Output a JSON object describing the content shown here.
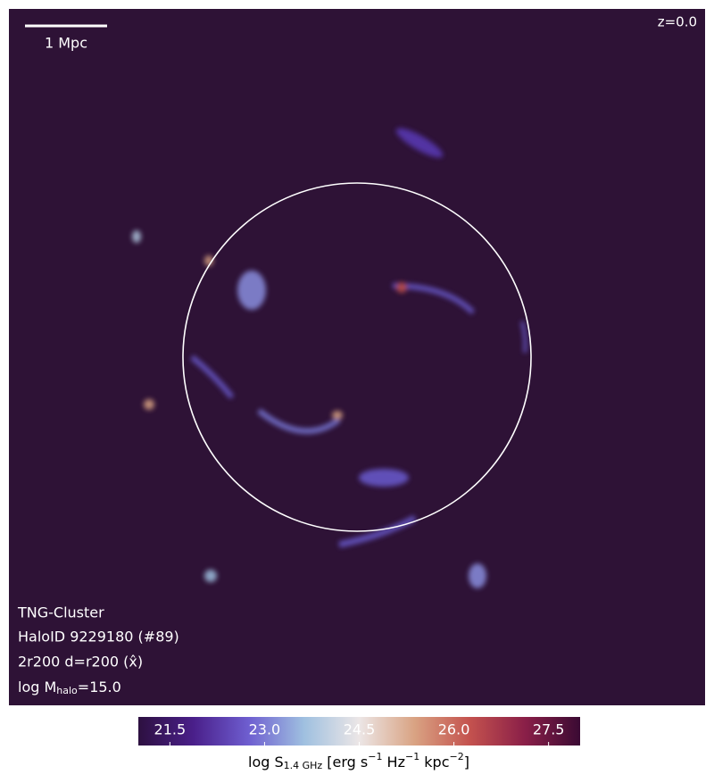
{
  "image": {
    "scale_bar": "1 Mpc",
    "redshift": "z=0.0",
    "info": [
      "TNG-Cluster",
      "HaloID 9229180 (#89)",
      "2r200 d=r200 (x̂)"
    ],
    "mass_label": [
      "log M",
      "halo",
      "=15.0"
    ]
  },
  "colorbar": {
    "lim": [
      21.0,
      28.0
    ],
    "ticks": [
      21.5,
      {
        "value": 23,
        "label": "23.0"
      },
      24.5,
      {
        "value": 26,
        "label": "26.0"
      },
      27.5
    ],
    "colormap": [
      "#2d1040",
      "#4a1f8a",
      "#6e5ed0",
      "#9fc0e0",
      "#ece6e6",
      "#d9a383",
      "#c4524e",
      "#8a1f48",
      "#3a0a33"
    ],
    "label": [
      "log S",
      "1.4 GHz",
      " [erg s",
      "−1",
      " Hz",
      "−1",
      " kpc",
      "−2",
      "]"
    ]
  }
}
